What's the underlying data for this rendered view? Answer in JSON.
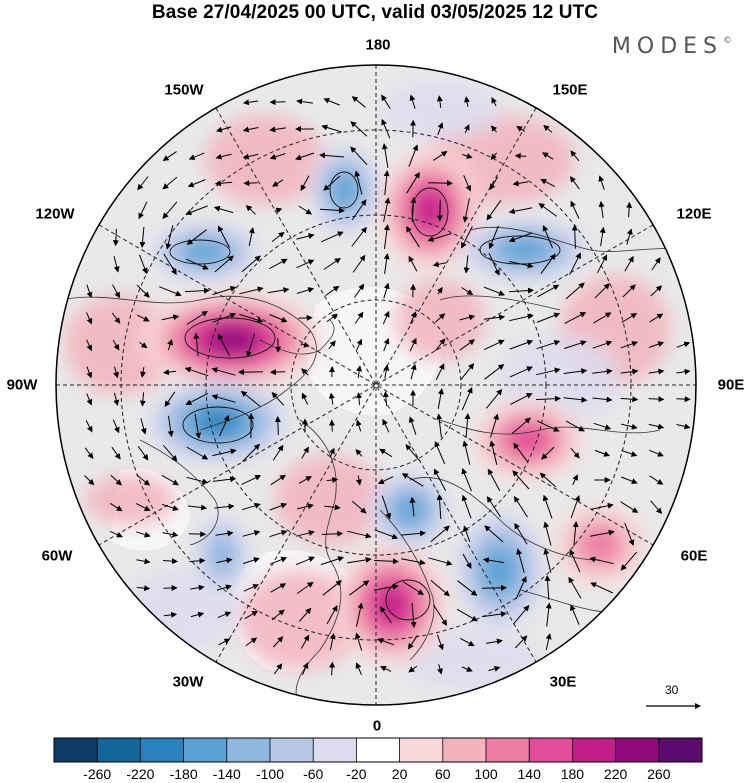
{
  "title": "Base 27/04/2025 00 UTC, valid 03/05/2025 12 UTC",
  "brand": "MODES",
  "brand_mark": "©",
  "longitude_labels": {
    "n180": "180",
    "w150": "150W",
    "e150": "150E",
    "w120": "120W",
    "e120": "120E",
    "w90": "90W",
    "e90": "90E",
    "w60": "60W",
    "e60": "60E",
    "w30": "30W",
    "e30": "30E",
    "s0": "0"
  },
  "reference_vector": {
    "label": "30"
  },
  "colorbar": {
    "ticks": [
      "-260",
      "-220",
      "-180",
      "-140",
      "-100",
      "-60",
      "-20",
      "20",
      "60",
      "100",
      "140",
      "180",
      "220",
      "260"
    ],
    "colors": [
      "#0d3b66",
      "#13669a",
      "#2a82bd",
      "#5aa2d4",
      "#8fb8e0",
      "#b8c6e6",
      "#dcdcee",
      "#ffffff",
      "#f8d8d8",
      "#f2b3bd",
      "#ec7ea4",
      "#e34d9a",
      "#c21c8a",
      "#8f0a7c",
      "#5b0a6e"
    ]
  },
  "anomaly_centers": [
    {
      "id": "pos-east-siberian-sea",
      "sign": "positive",
      "level": 180
    },
    {
      "id": "pos-canada",
      "sign": "positive",
      "level": 220
    },
    {
      "id": "neg-hudson-bay",
      "sign": "negative",
      "level": -200
    },
    {
      "id": "neg-alaska-gulf",
      "sign": "negative",
      "level": -140
    },
    {
      "id": "neg-bering",
      "sign": "negative",
      "level": -140
    },
    {
      "id": "neg-siberia",
      "sign": "negative",
      "level": -140
    },
    {
      "id": "pos-central-siberia",
      "sign": "positive",
      "level": 140
    },
    {
      "id": "pos-west-europe",
      "sign": "positive",
      "level": 180
    },
    {
      "id": "neg-scandinavia",
      "sign": "negative",
      "level": -140
    },
    {
      "id": "neg-west-russia",
      "sign": "negative",
      "level": -140
    },
    {
      "id": "pos-caspian",
      "sign": "positive",
      "level": 100
    },
    {
      "id": "neg-west-atlantic",
      "sign": "negative",
      "level": -100
    }
  ]
}
